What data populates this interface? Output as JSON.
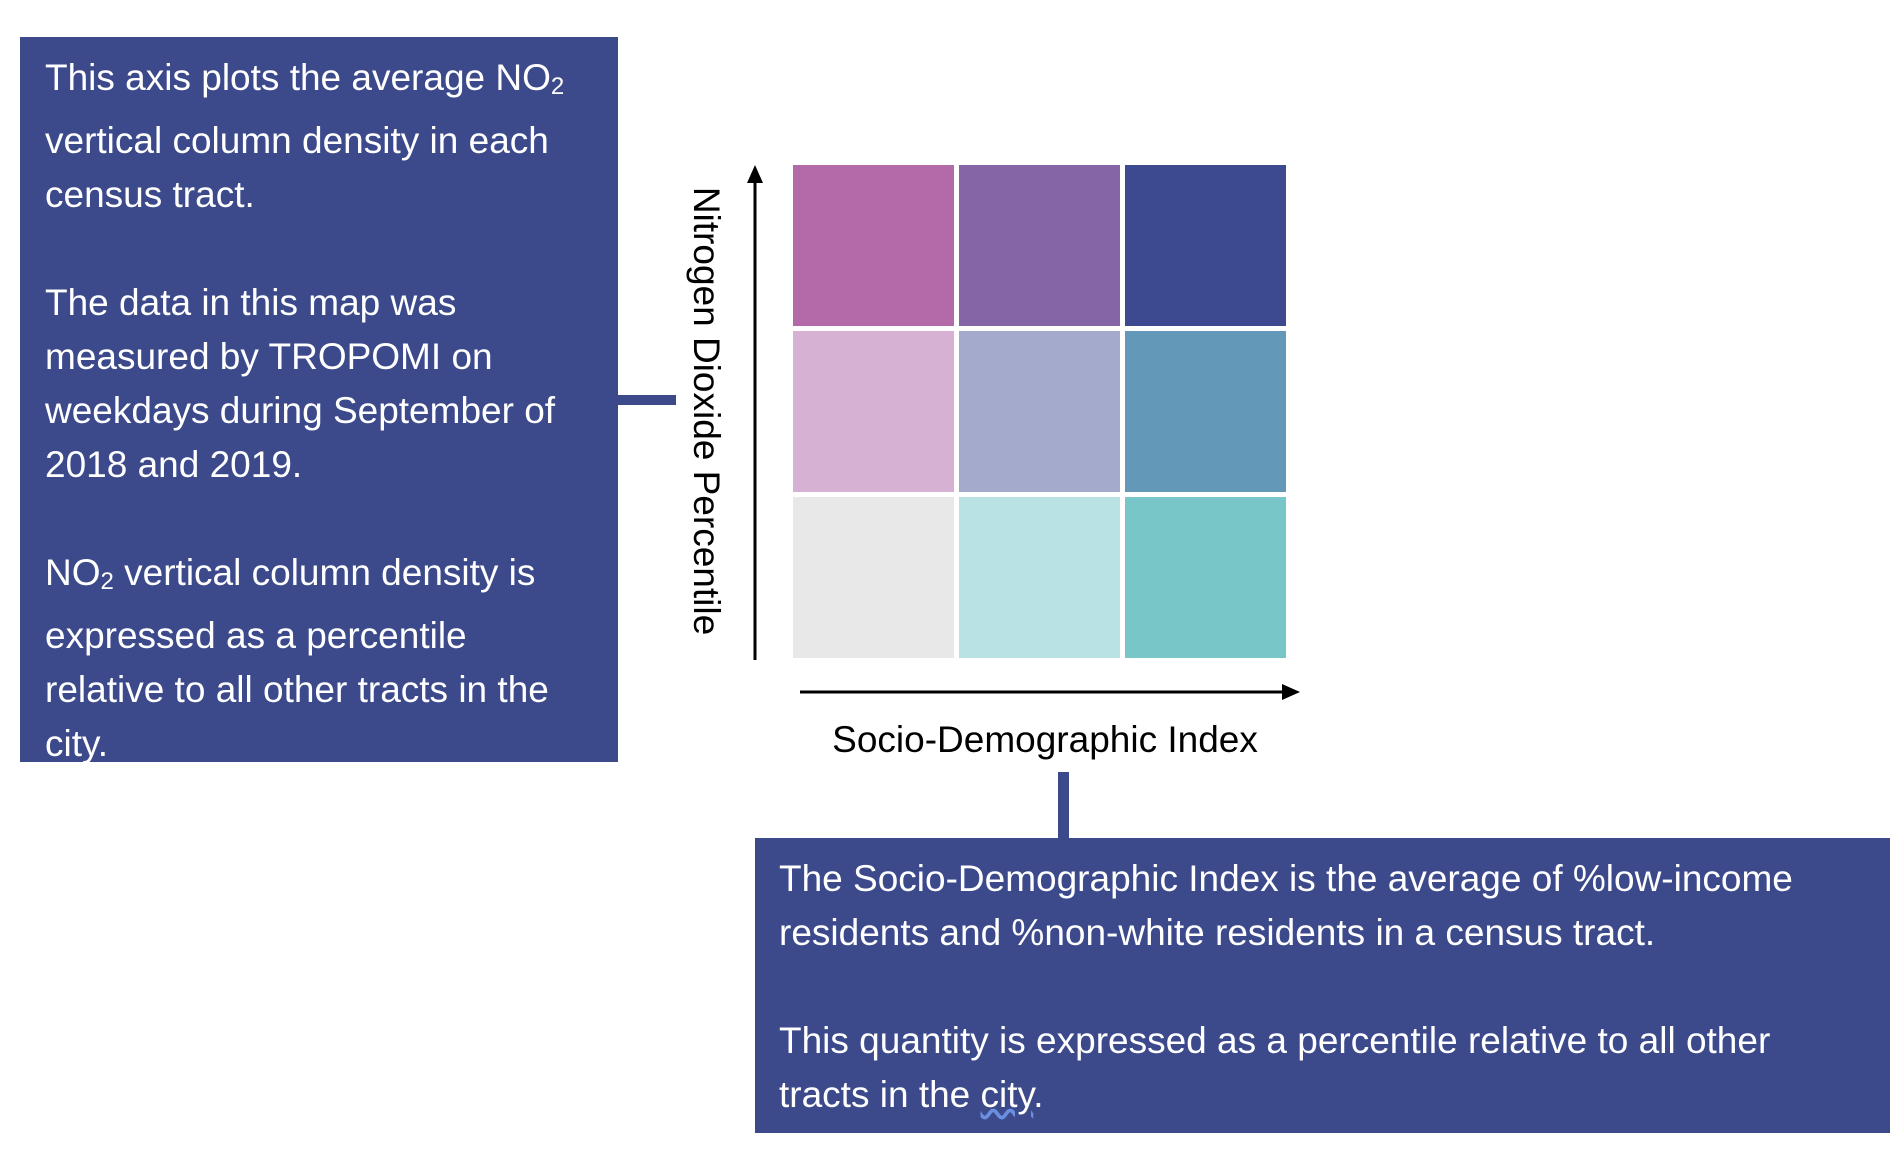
{
  "left_callout": {
    "p1": {
      "before": "This axis plots the average NO",
      "sub": "2",
      "after": " vertical column density in each census tract."
    },
    "p2": "The data in this map was measured by TROPOMI on weekdays during September of 2018 and 2019.",
    "p3": {
      "before": "NO",
      "sub": "2",
      "after": " vertical column density is expressed as a percentile relative to all other tracts in the city."
    }
  },
  "bottom_callout": {
    "p1": "The Socio-Demographic Index is the average of %low-income residents and %non-white residents in a census tract.",
    "p2_before": "This quantity is expressed as a percentile relative to all other tracts in the ",
    "p2_underlined": "city",
    "p2_after": "."
  },
  "axes": {
    "y_label": "Nitrogen Dioxide Percentile",
    "x_label": "Socio-Demographic Index"
  },
  "colors": {
    "callout_background": "#3c4a8c",
    "callout_text": "#ffffff",
    "axis_color": "#000000"
  },
  "legend_grid": {
    "rows": [
      [
        "#b26ba8",
        "#8565a5",
        "#3d4a8f"
      ],
      [
        "#d7b1d3",
        "#a3aacc",
        "#6398b8"
      ],
      [
        "#e8e8e8",
        "#b8e2e3",
        "#78c6c8"
      ]
    ]
  }
}
